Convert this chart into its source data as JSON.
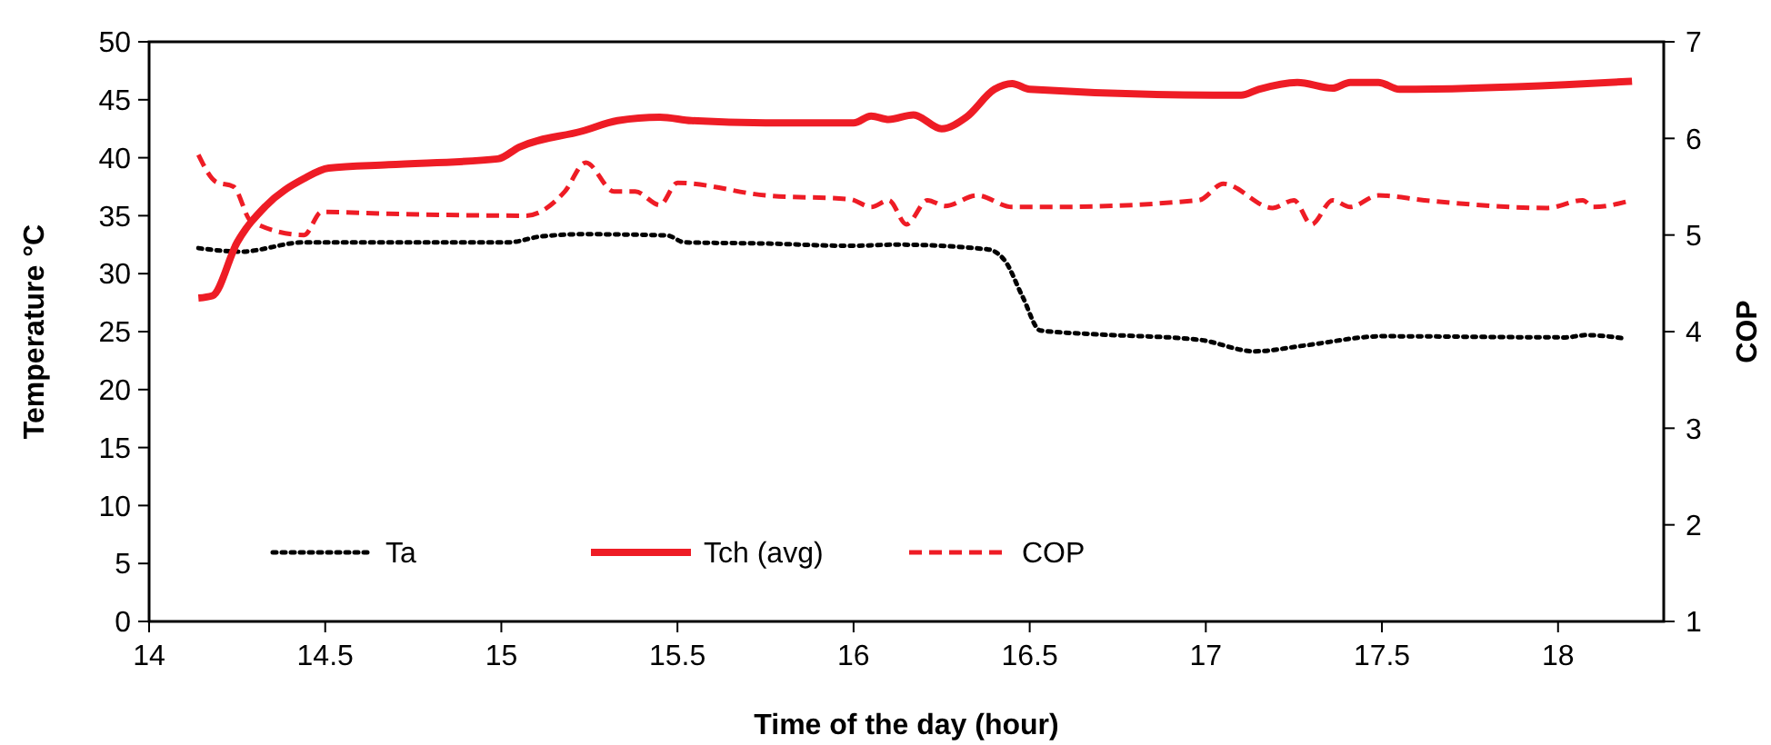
{
  "chart_data": {
    "type": "line",
    "xlabel": "Time of the day (hour)",
    "ylabel": "Temperature °C",
    "y2label": "COP",
    "xlim": [
      14,
      18.3
    ],
    "xticks": [
      14,
      14.5,
      15,
      15.5,
      16,
      16.5,
      17,
      17.5,
      18
    ],
    "ylim": [
      0,
      50
    ],
    "yticks": [
      0,
      5,
      10,
      15,
      20,
      25,
      30,
      35,
      40,
      45,
      50
    ],
    "y2lim": [
      1,
      7
    ],
    "y2ticks": [
      1,
      2,
      3,
      4,
      5,
      6,
      7
    ],
    "grid": false,
    "legend": "bottom",
    "marker": "none",
    "series": [
      {
        "name": "Ta",
        "color": "#000000",
        "line_style": "dotted",
        "x": [
          14.14,
          14.26,
          14.44,
          15.02,
          15.11,
          15.23,
          15.47,
          15.52,
          15.75,
          15.99,
          16.12,
          16.38,
          16.43,
          16.48,
          16.53,
          16.67,
          16.98,
          17.14,
          17.28,
          17.5,
          18.02,
          18.08,
          18.19
        ],
        "values": [
          32.2,
          31.9,
          32.7,
          32.7,
          33.2,
          33.4,
          33.3,
          32.7,
          32.6,
          32.4,
          32.5,
          32.1,
          31.1,
          28.0,
          25.1,
          24.8,
          24.3,
          23.3,
          23.8,
          24.6,
          24.5,
          24.7,
          24.4
        ]
      },
      {
        "name": "Tch (avg)",
        "color": "#ee1c25",
        "line_style": "solid",
        "x": [
          14.14,
          14.18,
          14.25,
          14.33,
          14.44,
          14.51,
          14.68,
          14.99,
          15.05,
          15.23,
          15.33,
          15.45,
          15.54,
          15.75,
          16.0,
          16.05,
          16.1,
          16.17,
          16.25,
          16.32,
          16.4,
          16.45,
          16.5,
          17.02,
          17.1,
          17.15,
          17.26,
          17.36,
          17.41,
          17.49,
          17.55,
          18.02,
          18.21
        ],
        "values": [
          27.9,
          28.1,
          32.7,
          35.8,
          38.2,
          39.1,
          39.4,
          39.9,
          40.9,
          42.3,
          43.2,
          43.5,
          43.2,
          43.0,
          43.0,
          43.6,
          43.3,
          43.7,
          42.5,
          43.5,
          45.9,
          46.4,
          45.9,
          45.4,
          45.4,
          45.9,
          46.5,
          46.0,
          46.5,
          46.5,
          45.9,
          46.3,
          46.6
        ]
      },
      {
        "name": "COP",
        "color": "#ee1c25",
        "line_style": "dashed",
        "axis": "y2",
        "x": [
          14.14,
          14.19,
          14.24,
          14.29,
          14.44,
          14.49,
          14.68,
          15.07,
          15.18,
          15.24,
          15.32,
          15.38,
          15.45,
          15.5,
          15.75,
          15.99,
          16.05,
          16.1,
          16.15,
          16.21,
          16.26,
          16.35,
          16.45,
          16.57,
          16.98,
          17.05,
          17.19,
          17.25,
          17.3,
          17.36,
          17.41,
          17.49,
          17.62,
          17.97,
          18.07,
          18.1,
          18.21
        ],
        "values": [
          5.83,
          5.55,
          5.5,
          5.14,
          5.0,
          5.24,
          5.22,
          5.2,
          5.45,
          5.75,
          5.45,
          5.45,
          5.31,
          5.54,
          5.41,
          5.37,
          5.29,
          5.36,
          5.11,
          5.36,
          5.3,
          5.41,
          5.29,
          5.29,
          5.36,
          5.53,
          5.28,
          5.36,
          5.11,
          5.36,
          5.29,
          5.41,
          5.36,
          5.28,
          5.36,
          5.29,
          5.36
        ]
      }
    ]
  }
}
